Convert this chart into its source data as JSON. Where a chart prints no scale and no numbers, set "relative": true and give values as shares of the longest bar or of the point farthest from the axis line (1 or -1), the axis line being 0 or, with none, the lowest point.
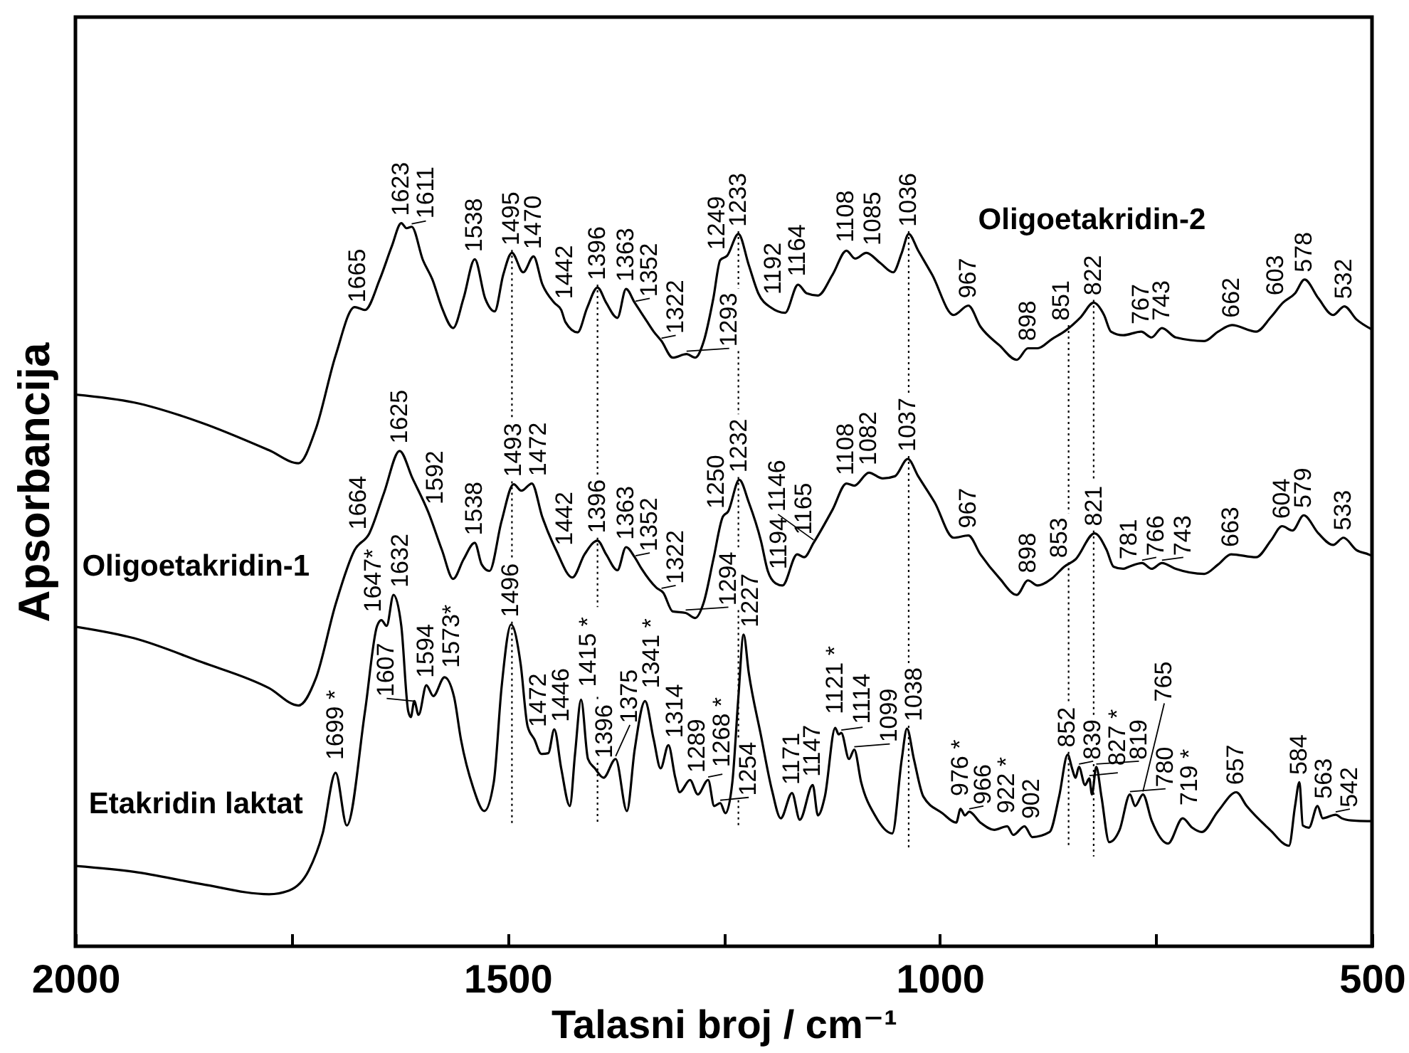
{
  "chart_data": {
    "type": "line",
    "relative": true,
    "xlabel": "Talasni broj / cm⁻¹",
    "ylabel": "Apsorbancija",
    "xlim": [
      2000,
      500
    ],
    "xticks": [
      2000,
      {
        "value": 1750,
        "label": null
      },
      1500,
      {
        "value": 1250,
        "label": null
      },
      1000,
      {
        "value": 750,
        "label": null
      },
      500
    ],
    "series": [
      {
        "name": "Oligoetakridin-2",
        "color": "#000000",
        "x": [
          2000,
          1932,
          1854,
          1776,
          1742,
          1722,
          1699,
          1677,
          1665,
          1648,
          1634,
          1623,
          1617,
          1611,
          1598,
          1587,
          1576,
          1563,
          1551,
          1538,
          1526,
          1515,
          1505,
          1495,
          1482,
          1470,
          1460,
          1446,
          1438,
          1433,
          1419,
          1408,
          1396,
          1386,
          1373,
          1363,
          1353,
          1342,
          1331,
          1322,
          1309,
          1293,
          1283,
          1273,
          1262,
          1254,
          1246,
          1233,
          1221,
          1210,
          1195,
          1179,
          1164,
          1154,
          1141,
          1124,
          1108,
          1098,
          1085,
          1069,
          1054,
          1044,
          1036,
          1025,
          1009,
          984,
          967,
          953,
          931,
          911,
          898,
          887,
          870,
          855,
          837,
          822,
          810,
          802,
          788,
          767,
          755,
          743,
          727,
          694,
          678,
          662,
          634,
          617,
          603,
          589,
          578,
          562,
          545,
          532,
          518,
          500
        ],
        "values": [
          0.763,
          0.752,
          0.724,
          0.686,
          0.668,
          0.715,
          0.817,
          0.884,
          0.88,
          0.922,
          0.968,
          1.0,
          0.993,
          0.995,
          0.949,
          0.922,
          0.883,
          0.855,
          0.896,
          0.95,
          0.896,
          0.878,
          0.929,
          0.959,
          0.932,
          0.954,
          0.916,
          0.89,
          0.88,
          0.863,
          0.849,
          0.883,
          0.911,
          0.89,
          0.869,
          0.909,
          0.89,
          0.87,
          0.85,
          0.837,
          0.814,
          0.819,
          0.814,
          0.837,
          0.896,
          0.949,
          0.955,
          0.985,
          0.942,
          0.903,
          0.883,
          0.876,
          0.915,
          0.903,
          0.9,
          0.929,
          0.962,
          0.951,
          0.959,
          0.945,
          0.932,
          0.959,
          0.985,
          0.962,
          0.929,
          0.873,
          0.886,
          0.857,
          0.831,
          0.811,
          0.827,
          0.827,
          0.84,
          0.851,
          0.87,
          0.89,
          0.873,
          0.85,
          0.845,
          0.85,
          0.842,
          0.855,
          0.842,
          0.837,
          0.85,
          0.859,
          0.85,
          0.87,
          0.89,
          0.903,
          0.922,
          0.896,
          0.873,
          0.885,
          0.867,
          0.853
        ]
      },
      {
        "name": "Oligoetakridin-1",
        "color": "#000000",
        "x": [
          2000,
          1932,
          1854,
          1776,
          1742,
          1722,
          1699,
          1677,
          1660,
          1643,
          1625,
          1610,
          1592,
          1576,
          1563,
          1551,
          1538,
          1530,
          1521,
          1507,
          1493,
          1484,
          1472,
          1460,
          1444,
          1425,
          1411,
          1396,
          1386,
          1373,
          1363,
          1353,
          1345,
          1328,
          1320,
          1309,
          1294,
          1283,
          1273,
          1262,
          1251,
          1245,
          1232,
          1221,
          1207,
          1199,
          1190,
          1182,
          1165,
          1157,
          1146,
          1124,
          1108,
          1099,
          1082,
          1066,
          1052,
          1037,
          1025,
          1006,
          984,
          967,
          953,
          931,
          911,
          898,
          887,
          870,
          856,
          843,
          821,
          807,
          799,
          788,
          781,
          766,
          755,
          743,
          727,
          694,
          678,
          663,
          634,
          617,
          604,
          592,
          579,
          562,
          545,
          533,
          518,
          504,
          500
        ],
        "values": [
          0.442,
          0.426,
          0.393,
          0.357,
          0.333,
          0.37,
          0.473,
          0.548,
          0.571,
          0.627,
          0.685,
          0.647,
          0.601,
          0.548,
          0.508,
          0.535,
          0.558,
          0.528,
          0.519,
          0.588,
          0.639,
          0.63,
          0.64,
          0.594,
          0.548,
          0.51,
          0.542,
          0.561,
          0.542,
          0.52,
          0.552,
          0.538,
          0.522,
          0.496,
          0.489,
          0.463,
          0.461,
          0.454,
          0.476,
          0.535,
          0.594,
          0.601,
          0.645,
          0.614,
          0.561,
          0.519,
          0.502,
          0.499,
          0.542,
          0.538,
          0.558,
          0.604,
          0.64,
          0.637,
          0.655,
          0.647,
          0.65,
          0.674,
          0.65,
          0.614,
          0.565,
          0.568,
          0.542,
          0.509,
          0.486,
          0.506,
          0.499,
          0.509,
          0.525,
          0.535,
          0.571,
          0.548,
          0.525,
          0.522,
          0.525,
          0.53,
          0.522,
          0.53,
          0.522,
          0.515,
          0.528,
          0.542,
          0.538,
          0.561,
          0.581,
          0.575,
          0.596,
          0.571,
          0.555,
          0.565,
          0.548,
          0.542,
          0.54
        ]
      },
      {
        "name": "Etakridin laktat",
        "color": "#000000",
        "x": [
          2000,
          1932,
          1854,
          1776,
          1753,
          1730,
          1714,
          1699,
          1686,
          1665,
          1651,
          1646,
          1640,
          1632,
          1623,
          1615,
          1612,
          1608,
          1603,
          1594,
          1586,
          1573,
          1562,
          1554,
          1540,
          1527,
          1516,
          1507,
          1496,
          1485,
          1477,
          1469,
          1461,
          1453,
          1446,
          1438,
          1428,
          1422,
          1415,
          1407,
          1399,
          1389,
          1375,
          1362,
          1353,
          1341,
          1331,
          1323,
          1314,
          1306,
          1301,
          1289,
          1280,
          1268,
          1261,
          1254,
          1248,
          1240,
          1233,
          1227,
          1221,
          1207,
          1194,
          1184,
          1171,
          1162,
          1147,
          1141,
          1133,
          1121,
          1117,
          1114,
          1105,
          1099,
          1091,
          1075,
          1055,
          1044,
          1038,
          1030,
          1019,
          997,
          981,
          976,
          971,
          966,
          953,
          937,
          922,
          915,
          902,
          893,
          873,
          862,
          852,
          847,
          843,
          839,
          832,
          827,
          824,
          819,
          813,
          804,
          792,
          780,
          774,
          765,
          755,
          736,
          719,
          708,
          697,
          678,
          657,
          645,
          618,
          596,
          589,
          584,
          580,
          573,
          563,
          557,
          542,
          535,
          524,
          505,
          500
        ],
        "values": [
          0.111,
          0.103,
          0.086,
          0.072,
          0.077,
          0.105,
          0.156,
          0.24,
          0.167,
          0.325,
          0.443,
          0.451,
          0.443,
          0.486,
          0.443,
          0.325,
          0.317,
          0.339,
          0.32,
          0.361,
          0.346,
          0.372,
          0.345,
          0.286,
          0.22,
          0.187,
          0.227,
          0.358,
          0.445,
          0.391,
          0.305,
          0.286,
          0.266,
          0.267,
          0.3,
          0.246,
          0.194,
          0.266,
          0.341,
          0.259,
          0.246,
          0.233,
          0.259,
          0.187,
          0.272,
          0.339,
          0.286,
          0.246,
          0.278,
          0.233,
          0.213,
          0.23,
          0.21,
          0.23,
          0.194,
          0.198,
          0.184,
          0.227,
          0.345,
          0.431,
          0.378,
          0.292,
          0.215,
          0.177,
          0.212,
          0.175,
          0.223,
          0.181,
          0.207,
          0.302,
          0.293,
          0.295,
          0.259,
          0.272,
          0.227,
          0.181,
          0.156,
          0.259,
          0.301,
          0.259,
          0.207,
          0.184,
          0.171,
          0.19,
          0.181,
          0.186,
          0.171,
          0.161,
          0.166,
          0.154,
          0.166,
          0.151,
          0.158,
          0.207,
          0.265,
          0.246,
          0.233,
          0.248,
          0.223,
          0.232,
          0.21,
          0.248,
          0.207,
          0.144,
          0.161,
          0.21,
          0.194,
          0.21,
          0.174,
          0.142,
          0.177,
          0.164,
          0.158,
          0.187,
          0.213,
          0.194,
          0.161,
          0.139,
          0.194,
          0.227,
          0.167,
          0.164,
          0.194,
          0.177,
          0.182,
          0.177,
          0.174,
          0.173,
          0.173
        ]
      }
    ],
    "ref_lines": [
      {
        "axis": "x",
        "value": 1495,
        "line_style": "dotted"
      },
      {
        "axis": "x",
        "value": 1396,
        "line_style": "dotted"
      },
      {
        "axis": "x",
        "value": 1233,
        "line_style": "dotted"
      },
      {
        "axis": "x",
        "value": 1036,
        "line_style": "dotted"
      },
      {
        "axis": "x",
        "value": 851,
        "line_style": "dotted"
      },
      {
        "axis": "x",
        "value": 822,
        "line_style": "dotted"
      }
    ],
    "annotations": [
      {
        "text": "1665",
        "x": 1665,
        "y": 0.88
      },
      {
        "text": "1623",
        "x": 1623,
        "y": 1.0
      },
      {
        "text": "1611",
        "x": 1611,
        "y": 0.995
      },
      {
        "text": "1538",
        "x": 1538,
        "y": 0.95
      },
      {
        "text": "1495",
        "x": 1495,
        "y": 0.959
      },
      {
        "text": "1470",
        "x": 1470,
        "y": 0.954
      },
      {
        "text": "1442",
        "x": 1442,
        "y": 0.885
      },
      {
        "text": "1396",
        "x": 1396,
        "y": 0.911
      },
      {
        "text": "1363",
        "x": 1363,
        "y": 0.909
      },
      {
        "text": "1352",
        "x": 1352,
        "y": 0.888
      },
      {
        "text": "1322",
        "x": 1322,
        "y": 0.837
      },
      {
        "text": "1293",
        "x": 1293,
        "y": 0.819
      },
      {
        "text": "1249",
        "x": 1249,
        "y": 0.953
      },
      {
        "text": "1233",
        "x": 1233,
        "y": 0.985
      },
      {
        "text": "1192",
        "x": 1192,
        "y": 0.882
      },
      {
        "text": "1164",
        "x": 1164,
        "y": 0.915
      },
      {
        "text": "1108",
        "x": 1108,
        "y": 0.962
      },
      {
        "text": "1085",
        "x": 1085,
        "y": 0.959
      },
      {
        "text": "1036",
        "x": 1036,
        "y": 0.985
      },
      {
        "text": "967",
        "x": 967,
        "y": 0.886
      },
      {
        "text": "898",
        "x": 898,
        "y": 0.827
      },
      {
        "text": "851",
        "x": 851,
        "y": 0.855
      },
      {
        "text": "822",
        "x": 822,
        "y": 0.89
      },
      {
        "text": "767",
        "x": 767,
        "y": 0.85
      },
      {
        "text": "743",
        "x": 743,
        "y": 0.855
      },
      {
        "text": "662",
        "x": 662,
        "y": 0.859
      },
      {
        "text": "603",
        "x": 603,
        "y": 0.89
      },
      {
        "text": "578",
        "x": 578,
        "y": 0.922
      },
      {
        "text": "532",
        "x": 532,
        "y": 0.885
      },
      {
        "text": "1664",
        "x": 1664,
        "y": 0.566
      },
      {
        "text": "1625",
        "x": 1625,
        "y": 0.685
      },
      {
        "text": "1592",
        "x": 1592,
        "y": 0.601
      },
      {
        "text": "1538",
        "x": 1538,
        "y": 0.558
      },
      {
        "text": "1493",
        "x": 1493,
        "y": 0.639
      },
      {
        "text": "1472",
        "x": 1472,
        "y": 0.64
      },
      {
        "text": "1442",
        "x": 1442,
        "y": 0.544
      },
      {
        "text": "1396",
        "x": 1396,
        "y": 0.561
      },
      {
        "text": "1363",
        "x": 1363,
        "y": 0.552
      },
      {
        "text": "1352",
        "x": 1352,
        "y": 0.536
      },
      {
        "text": "1322",
        "x": 1322,
        "y": 0.491
      },
      {
        "text": "1294",
        "x": 1294,
        "y": 0.461
      },
      {
        "text": "1250",
        "x": 1250,
        "y": 0.595
      },
      {
        "text": "1232",
        "x": 1232,
        "y": 0.645
      },
      {
        "text": "1194",
        "x": 1194,
        "y": 0.51
      },
      {
        "text": "1165",
        "x": 1165,
        "y": 0.542
      },
      {
        "text": "1146",
        "x": 1146,
        "y": 0.558
      },
      {
        "text": "1108",
        "x": 1108,
        "y": 0.64
      },
      {
        "text": "1082",
        "x": 1082,
        "y": 0.655
      },
      {
        "text": "1037",
        "x": 1037,
        "y": 0.674
      },
      {
        "text": "967",
        "x": 967,
        "y": 0.568
      },
      {
        "text": "898",
        "x": 898,
        "y": 0.506
      },
      {
        "text": "853",
        "x": 853,
        "y": 0.527
      },
      {
        "text": "821",
        "x": 821,
        "y": 0.571
      },
      {
        "text": "781",
        "x": 781,
        "y": 0.525
      },
      {
        "text": "766",
        "x": 766,
        "y": 0.53
      },
      {
        "text": "743",
        "x": 743,
        "y": 0.53
      },
      {
        "text": "663",
        "x": 663,
        "y": 0.542
      },
      {
        "text": "604",
        "x": 604,
        "y": 0.581
      },
      {
        "text": "579",
        "x": 579,
        "y": 0.596
      },
      {
        "text": "533",
        "x": 533,
        "y": 0.565
      },
      {
        "text": "1699 *",
        "x": 1699,
        "y": 0.24
      },
      {
        "text": "1647*",
        "x": 1647,
        "y": 0.449
      },
      {
        "text": "1632",
        "x": 1632,
        "y": 0.486
      },
      {
        "text": "1607",
        "x": 1607,
        "y": 0.335
      },
      {
        "text": "1594",
        "x": 1594,
        "y": 0.361
      },
      {
        "text": "1573*",
        "x": 1573,
        "y": 0.372
      },
      {
        "text": "1496",
        "x": 1496,
        "y": 0.445
      },
      {
        "text": "1472",
        "x": 1472,
        "y": 0.293
      },
      {
        "text": "1446",
        "x": 1446,
        "y": 0.3
      },
      {
        "text": "1415 *",
        "x": 1415,
        "y": 0.341
      },
      {
        "text": "1396",
        "x": 1396,
        "y": 0.242
      },
      {
        "text": "1375",
        "x": 1375,
        "y": 0.259
      },
      {
        "text": "1341 *",
        "x": 1341,
        "y": 0.339
      },
      {
        "text": "1314",
        "x": 1314,
        "y": 0.278
      },
      {
        "text": "1289",
        "x": 1289,
        "y": 0.23
      },
      {
        "text": "1268 *",
        "x": 1268,
        "y": 0.23
      },
      {
        "text": "1254",
        "x": 1254,
        "y": 0.198
      },
      {
        "text": "1227",
        "x": 1227,
        "y": 0.431
      },
      {
        "text": "1171",
        "x": 1171,
        "y": 0.212
      },
      {
        "text": "1147",
        "x": 1147,
        "y": 0.223
      },
      {
        "text": "1121 *",
        "x": 1121,
        "y": 0.302
      },
      {
        "text": "1114",
        "x": 1114,
        "y": 0.295
      },
      {
        "text": "1099",
        "x": 1099,
        "y": 0.272
      },
      {
        "text": "1038",
        "x": 1038,
        "y": 0.301
      },
      {
        "text": "976 *",
        "x": 976,
        "y": 0.19
      },
      {
        "text": "966",
        "x": 966,
        "y": 0.186
      },
      {
        "text": "922 *",
        "x": 922,
        "y": 0.166
      },
      {
        "text": "902",
        "x": 902,
        "y": 0.166
      },
      {
        "text": "852",
        "x": 852,
        "y": 0.265
      },
      {
        "text": "839",
        "x": 839,
        "y": 0.248
      },
      {
        "text": "827 *",
        "x": 827,
        "y": 0.232
      },
      {
        "text": "819",
        "x": 819,
        "y": 0.248
      },
      {
        "text": "780",
        "x": 780,
        "y": 0.21
      },
      {
        "text": "765",
        "x": 765,
        "y": 0.21
      },
      {
        "text": "719 *",
        "x": 719,
        "y": 0.177
      },
      {
        "text": "657",
        "x": 657,
        "y": 0.213
      },
      {
        "text": "584",
        "x": 584,
        "y": 0.227
      },
      {
        "text": "563",
        "x": 563,
        "y": 0.194
      },
      {
        "text": "542",
        "x": 542,
        "y": 0.182
      }
    ]
  }
}
